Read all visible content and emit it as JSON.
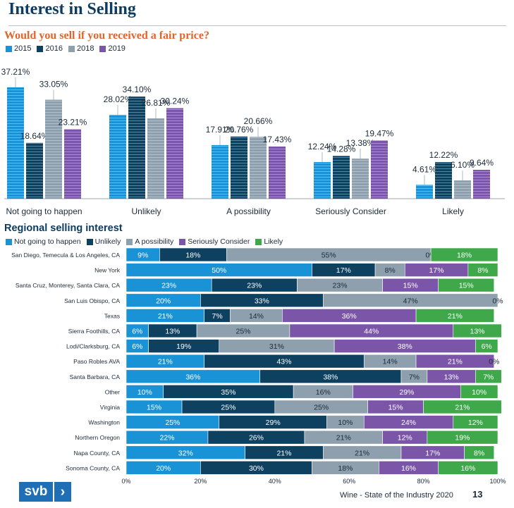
{
  "header": {
    "title": "Interest in Selling",
    "subtitle": "Would you sell if you received a fair price?",
    "section2": "Regional selling interest"
  },
  "colors": {
    "2015": "#1a93d6",
    "2016": "#0e4060",
    "2018": "#8ea0ae",
    "2019": "#7b55a8",
    "Not going to happen": "#1a93d6",
    "Unlikely": "#0e4060",
    "A possibility": "#8ea0ae",
    "Seriously Consider": "#7b55a8",
    "Likely": "#3fa84a"
  },
  "chart_data": [
    {
      "type": "bar",
      "categories": [
        "Not going to happen",
        "Unlikely",
        "A possibility",
        "Seriously Consider",
        "Likely"
      ],
      "series": [
        {
          "name": "2015",
          "values": [
            37.21,
            28.02,
            17.91,
            12.24,
            4.61
          ]
        },
        {
          "name": "2016",
          "values": [
            18.64,
            34.1,
            20.76,
            14.28,
            12.22
          ]
        },
        {
          "name": "2018",
          "values": [
            33.05,
            26.81,
            20.66,
            13.38,
            6.1
          ]
        },
        {
          "name": "2019",
          "values": [
            23.21,
            30.24,
            17.43,
            19.47,
            9.64
          ]
        }
      ],
      "labels": [
        [
          "37.21%",
          "28.02%",
          "17.91%",
          "12.24%",
          "4.61%"
        ],
        [
          "18.64%",
          "34.10%",
          "20.76%",
          "14.28%",
          "12.22%"
        ],
        [
          "33.05%",
          "26.81%",
          "20.66%",
          "13.38%",
          "6.10%"
        ],
        [
          "23.21%",
          "30.24%",
          "17.43%",
          "19.47%",
          "9.64%"
        ]
      ],
      "ylim": [
        0,
        40
      ],
      "legend": "top-left"
    },
    {
      "type": "bar",
      "orientation": "horizontal-stacked",
      "categories": [
        "San Diego, Temecula & Los Angeles, CA",
        "New York",
        "Santa Cruz, Monterey, Santa Clara, CA",
        "San Luis Obispo, CA",
        "Texas",
        "Sierra Foothills, CA",
        "Lodi/Clarksburg, CA",
        "Paso Robles AVA",
        "Santa Barbara, CA",
        "Other",
        "Virginia",
        "Washington",
        "Northern Oregon",
        "Napa County, CA",
        "Sonoma County, CA"
      ],
      "series": [
        {
          "name": "Not going to happen",
          "values": [
            9,
            50,
            23,
            20,
            21,
            6,
            6,
            21,
            36,
            10,
            15,
            25,
            22,
            32,
            20
          ]
        },
        {
          "name": "Unlikely",
          "values": [
            18,
            17,
            23,
            33,
            7,
            13,
            19,
            43,
            38,
            35,
            25,
            29,
            26,
            21,
            30
          ]
        },
        {
          "name": "A possibility",
          "values": [
            55,
            8,
            23,
            47,
            14,
            25,
            31,
            14,
            7,
            16,
            25,
            10,
            21,
            21,
            18
          ]
        },
        {
          "name": "Seriously Consider",
          "values": [
            0,
            17,
            15,
            0,
            36,
            44,
            38,
            21,
            13,
            29,
            15,
            24,
            12,
            17,
            16
          ]
        },
        {
          "name": "Likely",
          "values": [
            18,
            8,
            15,
            0,
            21,
            13,
            6,
            0,
            7,
            10,
            21,
            12,
            19,
            8,
            16
          ]
        }
      ],
      "labels": [
        [
          "9%",
          "50%",
          "23%",
          "20%",
          "21%",
          "6%",
          "6%",
          "21%",
          "36%",
          "10%",
          "15%",
          "25%",
          "22%",
          "32%",
          "20%"
        ],
        [
          "18%",
          "17%",
          "23%",
          "33%",
          "7%",
          "13%",
          "19%",
          "43%",
          "38%",
          "35%",
          "25%",
          "29%",
          "26%",
          "21%",
          "30%"
        ],
        [
          "55%",
          "8%",
          "23%",
          "47%",
          "14%",
          "25%",
          "31%",
          "14%",
          "7%",
          "16%",
          "25%",
          "10%",
          "21%",
          "21%",
          "18%"
        ],
        [
          "0%",
          "17%",
          "15%",
          "",
          "36%",
          "44%",
          "38%",
          "21%",
          "13%",
          "29%",
          "15%",
          "24%",
          "12%",
          "17%",
          "16%"
        ],
        [
          "18%",
          "8%",
          "15%",
          "0%",
          "21%",
          "13%",
          "6%",
          "0%",
          "7%",
          "10%",
          "21%",
          "12%",
          "19%",
          "8%",
          "16%"
        ]
      ],
      "xticks": [
        "0%",
        "20%",
        "40%",
        "60%",
        "80%",
        "100%"
      ],
      "xlim": [
        0,
        100
      ],
      "legend": "top-left"
    }
  ],
  "footer": {
    "logo": "svb",
    "arrow": "›",
    "source": "Wine - State of the Industry 2020",
    "page": "13"
  }
}
